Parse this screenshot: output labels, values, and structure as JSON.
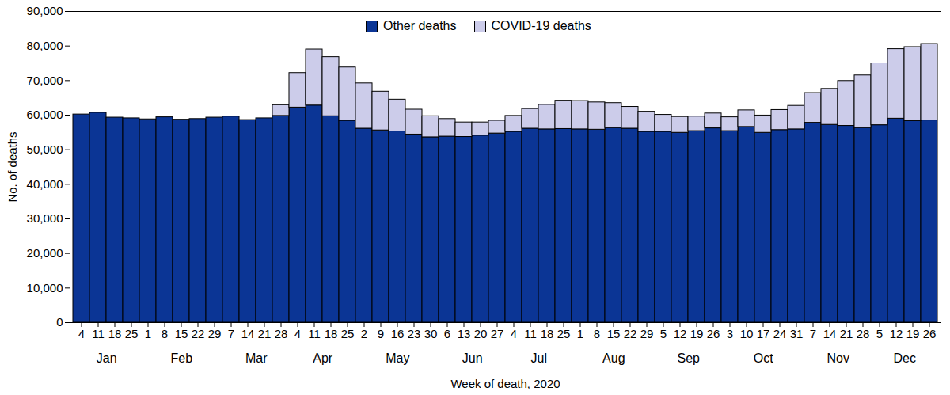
{
  "chart_data": {
    "type": "bar",
    "stacked": true,
    "grid": false,
    "legend": "top",
    "x_label": "Week of death, 2020",
    "y_label": "No. of deaths",
    "categories": [
      "4",
      "11",
      "18",
      "25",
      "1",
      "8",
      "15",
      "22",
      "29",
      "7",
      "14",
      "21",
      "28",
      "4",
      "11",
      "18",
      "25",
      "2",
      "9",
      "16",
      "23",
      "30",
      "6",
      "13",
      "20",
      "27",
      "4",
      "11",
      "18",
      "25",
      "1",
      "8",
      "15",
      "22",
      "29",
      "5",
      "12",
      "19",
      "26",
      "3",
      "10",
      "17",
      "24",
      "31",
      "7",
      "14",
      "21",
      "28",
      "5",
      "12",
      "19",
      "26"
    ],
    "months": [
      "Jan",
      "Jan",
      "Jan",
      "Jan",
      "Feb",
      "Feb",
      "Feb",
      "Feb",
      "Feb",
      "Mar",
      "Mar",
      "Mar",
      "Mar",
      "Apr",
      "Apr",
      "Apr",
      "Apr",
      "May",
      "May",
      "May",
      "May",
      "May",
      "Jun",
      "Jun",
      "Jun",
      "Jun",
      "Jul",
      "Jul",
      "Jul",
      "Jul",
      "Aug",
      "Aug",
      "Aug",
      "Aug",
      "Aug",
      "Sep",
      "Sep",
      "Sep",
      "Sep",
      "Oct",
      "Oct",
      "Oct",
      "Oct",
      "Oct",
      "Nov",
      "Nov",
      "Nov",
      "Nov",
      "Dec",
      "Dec",
      "Dec",
      "Dec"
    ],
    "series": [
      {
        "name": "Other deaths",
        "color": "#0b3595",
        "values": [
          60200,
          60700,
          59300,
          59100,
          58800,
          59400,
          58700,
          58900,
          59300,
          59600,
          58600,
          59100,
          59800,
          62200,
          62800,
          59700,
          58400,
          56100,
          55600,
          55300,
          54400,
          53600,
          53800,
          53700,
          54100,
          54700,
          55200,
          56100,
          55900,
          56000,
          55900,
          55800,
          56300,
          56100,
          55200,
          55200,
          54900,
          55400,
          56200,
          55400,
          56600,
          54900,
          55700,
          55900,
          57800,
          57200,
          56900,
          56300,
          57100,
          59000,
          58300,
          58500
        ]
      },
      {
        "name": "COVID-19 deaths",
        "color": "#ccccea",
        "values": [
          0,
          0,
          0,
          0,
          0,
          0,
          0,
          0,
          0,
          0,
          0,
          0,
          3100,
          10000,
          16200,
          17100,
          15400,
          13100,
          11200,
          9200,
          7200,
          6100,
          5100,
          4200,
          3800,
          3700,
          4600,
          5700,
          7100,
          8200,
          8200,
          7900,
          7200,
          6300,
          5800,
          4900,
          4600,
          4200,
          4300,
          4000,
          4800,
          5000,
          5800,
          6800,
          8600,
          10400,
          13000,
          15200,
          17900,
          20100,
          21400,
          22100
        ]
      }
    ],
    "ylim": [
      0,
      90000
    ],
    "yticks": [
      0,
      {
        "value": 10000,
        "label": "10,000"
      },
      {
        "value": 20000,
        "label": "20,000"
      },
      {
        "value": 30000,
        "label": "30,000"
      },
      {
        "value": 40000,
        "label": "40,000"
      },
      {
        "value": 50000,
        "label": "50,000"
      },
      {
        "value": 60000,
        "label": "60,000"
      },
      {
        "value": 70000,
        "label": "70,000"
      },
      {
        "value": 80000,
        "label": "80,000"
      },
      {
        "value": 90000,
        "label": "90,000"
      }
    ]
  }
}
